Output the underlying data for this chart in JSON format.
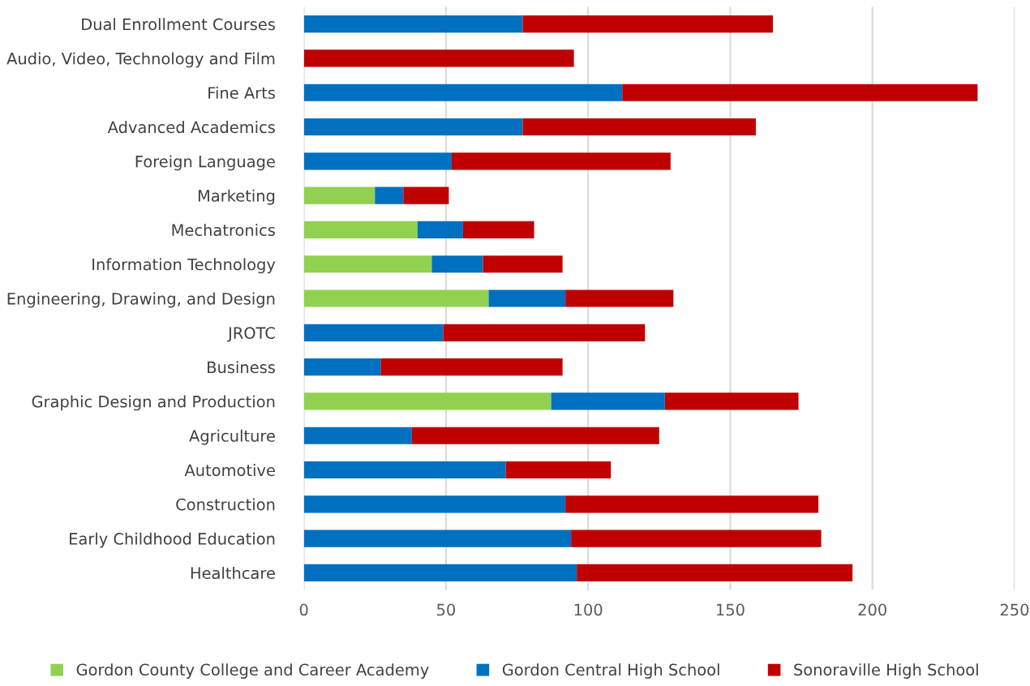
{
  "chart_data": {
    "type": "bar",
    "orientation": "horizontal",
    "stacked": true,
    "categories": [
      "Dual Enrollment Courses",
      "Audio, Video, Technology and Film",
      "Fine Arts",
      "Advanced Academics",
      "Foreign Language",
      "Marketing",
      "Mechatronics",
      "Information Technology",
      "Engineering, Drawing, and Design",
      "JROTC",
      "Business",
      "Graphic Design and Production",
      "Agriculture",
      "Automotive",
      "Construction",
      "Early Childhood Education",
      "Healthcare"
    ],
    "series": [
      {
        "name": "Gordon County College and Career Academy",
        "color": "#92d050",
        "values": [
          0,
          0,
          0,
          0,
          0,
          25,
          40,
          45,
          65,
          0,
          0,
          87,
          0,
          0,
          0,
          0,
          0
        ]
      },
      {
        "name": "Gordon Central High School",
        "color": "#0070c0",
        "values": [
          77,
          0,
          112,
          77,
          52,
          10,
          16,
          18,
          27,
          49,
          27,
          40,
          38,
          71,
          92,
          94,
          96
        ]
      },
      {
        "name": "Sonoraville High School",
        "color": "#c00000",
        "values": [
          88,
          95,
          125,
          82,
          77,
          16,
          25,
          28,
          38,
          71,
          64,
          47,
          87,
          37,
          89,
          88,
          97
        ]
      }
    ],
    "xlim": [
      0,
      250
    ],
    "xticks": [
      0,
      50,
      100,
      150,
      200,
      250
    ],
    "grid": "x",
    "legend": "bottom"
  }
}
